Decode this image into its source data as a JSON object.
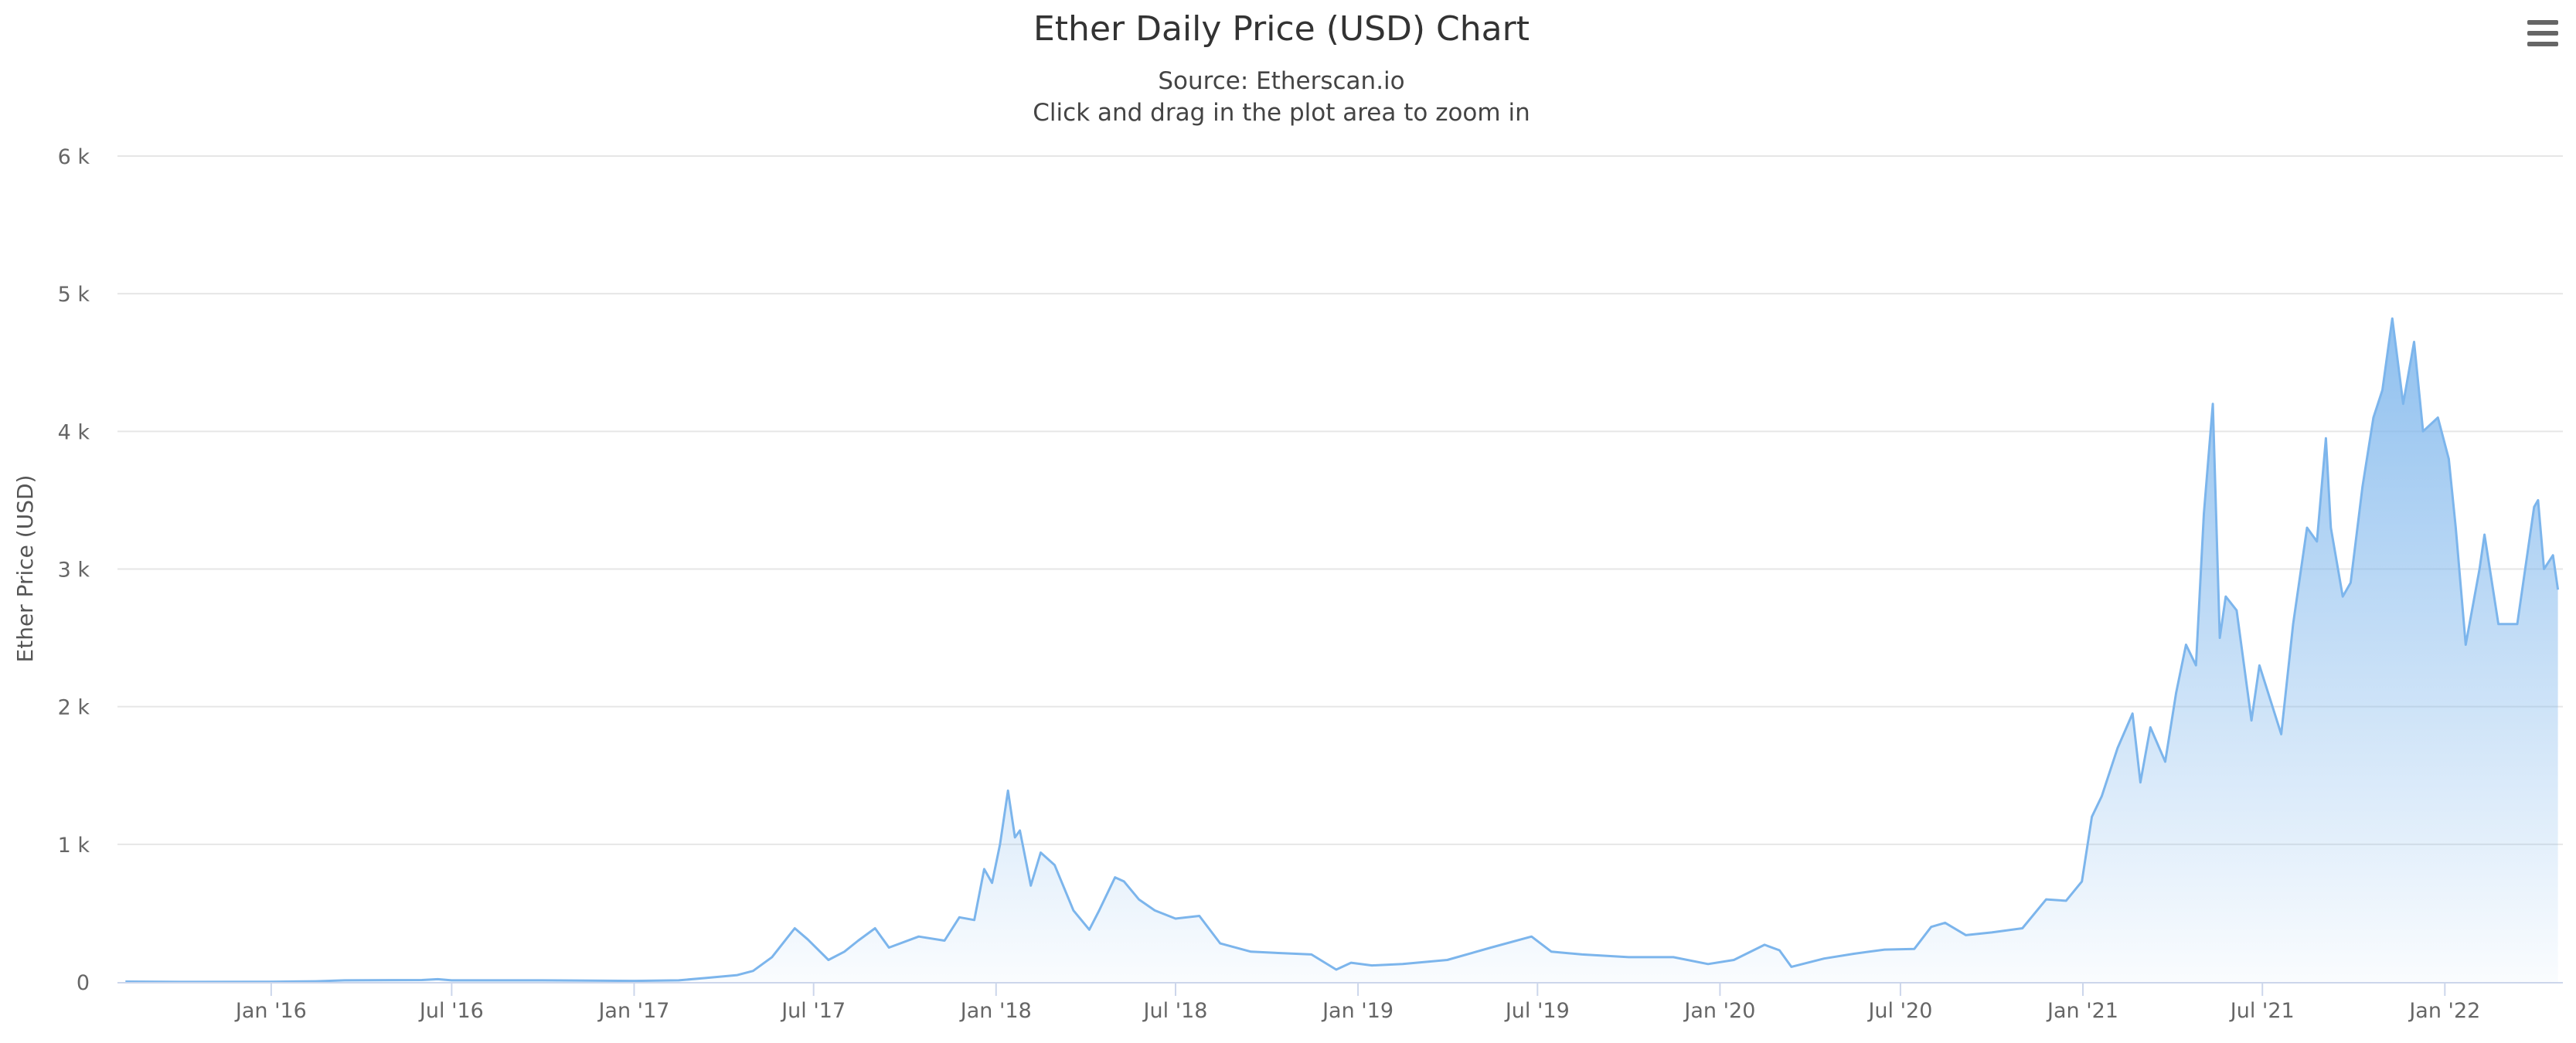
{
  "chart": {
    "title": "Ether Daily Price (USD) Chart",
    "subtitle_source": "Source: Etherscan.io",
    "subtitle_hint": "Click and drag in the plot area to zoom in",
    "menu_icon": "hamburger-menu-icon"
  },
  "chart_data": {
    "type": "area",
    "title": "Ether Daily Price (USD) Chart",
    "subtitle": "Source: Etherscan.io / Click and drag in the plot area to zoom in",
    "xlabel": "",
    "ylabel": "Ether Price (USD)",
    "ylim": [
      0,
      6000
    ],
    "xlim": [
      "2015-07-30",
      "2022-04-30"
    ],
    "yticks": [
      0,
      1000,
      2000,
      3000,
      4000,
      5000,
      6000
    ],
    "ytick_labels": [
      "0",
      "1 k",
      "2 k",
      "3 k",
      "4 k",
      "5 k",
      "6 k"
    ],
    "xticks": [
      {
        "date": "2016-01-01",
        "label": "Jan '16"
      },
      {
        "date": "2016-07-01",
        "label": "Jul '16"
      },
      {
        "date": "2017-01-01",
        "label": "Jan '17"
      },
      {
        "date": "2017-07-01",
        "label": "Jul '17"
      },
      {
        "date": "2018-01-01",
        "label": "Jan '18"
      },
      {
        "date": "2018-07-01",
        "label": "Jul '18"
      },
      {
        "date": "2019-01-01",
        "label": "Jan '19"
      },
      {
        "date": "2019-07-01",
        "label": "Jul '19"
      },
      {
        "date": "2020-01-01",
        "label": "Jan '20"
      },
      {
        "date": "2020-07-01",
        "label": "Jul '20"
      },
      {
        "date": "2021-01-01",
        "label": "Jan '21"
      },
      {
        "date": "2021-07-01",
        "label": "Jul '21"
      },
      {
        "date": "2022-01-01",
        "label": "Jan '22"
      }
    ],
    "grid": true,
    "legend": "none",
    "series_color": "#7cb5ec",
    "series": [
      {
        "name": "",
        "points": [
          [
            "2015-08-07",
            3
          ],
          [
            "2015-10-01",
            0.7
          ],
          [
            "2016-01-01",
            1
          ],
          [
            "2016-02-15",
            5
          ],
          [
            "2016-03-15",
            12
          ],
          [
            "2016-06-01",
            14
          ],
          [
            "2016-06-17",
            20
          ],
          [
            "2016-07-01",
            12
          ],
          [
            "2016-10-01",
            12
          ],
          [
            "2017-01-01",
            8
          ],
          [
            "2017-02-15",
            12
          ],
          [
            "2017-03-15",
            30
          ],
          [
            "2017-04-15",
            50
          ],
          [
            "2017-05-01",
            80
          ],
          [
            "2017-05-20",
            180
          ],
          [
            "2017-06-12",
            390
          ],
          [
            "2017-06-25",
            310
          ],
          [
            "2017-07-16",
            160
          ],
          [
            "2017-08-01",
            220
          ],
          [
            "2017-08-15",
            300
          ],
          [
            "2017-09-01",
            390
          ],
          [
            "2017-09-15",
            250
          ],
          [
            "2017-10-15",
            330
          ],
          [
            "2017-11-10",
            300
          ],
          [
            "2017-11-25",
            470
          ],
          [
            "2017-12-10",
            450
          ],
          [
            "2017-12-20",
            820
          ],
          [
            "2017-12-28",
            720
          ],
          [
            "2018-01-05",
            1000
          ],
          [
            "2018-01-13",
            1390
          ],
          [
            "2018-01-20",
            1050
          ],
          [
            "2018-01-25",
            1100
          ],
          [
            "2018-02-05",
            700
          ],
          [
            "2018-02-15",
            940
          ],
          [
            "2018-03-01",
            850
          ],
          [
            "2018-03-20",
            520
          ],
          [
            "2018-04-05",
            380
          ],
          [
            "2018-04-15",
            520
          ],
          [
            "2018-05-01",
            760
          ],
          [
            "2018-05-10",
            730
          ],
          [
            "2018-05-25",
            600
          ],
          [
            "2018-06-10",
            520
          ],
          [
            "2018-07-01",
            460
          ],
          [
            "2018-07-25",
            480
          ],
          [
            "2018-08-15",
            280
          ],
          [
            "2018-09-15",
            220
          ],
          [
            "2018-10-15",
            210
          ],
          [
            "2018-11-15",
            200
          ],
          [
            "2018-12-10",
            90
          ],
          [
            "2018-12-25",
            140
          ],
          [
            "2019-01-15",
            120
          ],
          [
            "2019-02-15",
            130
          ],
          [
            "2019-04-01",
            160
          ],
          [
            "2019-05-15",
            250
          ],
          [
            "2019-06-25",
            330
          ],
          [
            "2019-07-15",
            220
          ],
          [
            "2019-08-15",
            200
          ],
          [
            "2019-10-01",
            180
          ],
          [
            "2019-11-15",
            180
          ],
          [
            "2019-12-20",
            130
          ],
          [
            "2020-01-15",
            160
          ],
          [
            "2020-02-15",
            270
          ],
          [
            "2020-03-01",
            230
          ],
          [
            "2020-03-13",
            110
          ],
          [
            "2020-04-15",
            170
          ],
          [
            "2020-05-15",
            205
          ],
          [
            "2020-06-15",
            235
          ],
          [
            "2020-07-15",
            240
          ],
          [
            "2020-08-01",
            400
          ],
          [
            "2020-08-15",
            430
          ],
          [
            "2020-09-05",
            340
          ],
          [
            "2020-10-01",
            360
          ],
          [
            "2020-11-01",
            390
          ],
          [
            "2020-11-25",
            600
          ],
          [
            "2020-12-15",
            590
          ],
          [
            "2020-12-31",
            730
          ],
          [
            "2021-01-10",
            1200
          ],
          [
            "2021-01-20",
            1350
          ],
          [
            "2021-02-05",
            1700
          ],
          [
            "2021-02-20",
            1950
          ],
          [
            "2021-02-28",
            1450
          ],
          [
            "2021-03-10",
            1850
          ],
          [
            "2021-03-25",
            1600
          ],
          [
            "2021-04-05",
            2100
          ],
          [
            "2021-04-15",
            2450
          ],
          [
            "2021-04-25",
            2300
          ],
          [
            "2021-05-03",
            3400
          ],
          [
            "2021-05-12",
            4200
          ],
          [
            "2021-05-19",
            2500
          ],
          [
            "2021-05-25",
            2800
          ],
          [
            "2021-06-05",
            2700
          ],
          [
            "2021-06-20",
            1900
          ],
          [
            "2021-06-28",
            2300
          ],
          [
            "2021-07-20",
            1800
          ],
          [
            "2021-08-01",
            2600
          ],
          [
            "2021-08-15",
            3300
          ],
          [
            "2021-08-25",
            3200
          ],
          [
            "2021-09-03",
            3950
          ],
          [
            "2021-09-08",
            3300
          ],
          [
            "2021-09-20",
            2800
          ],
          [
            "2021-09-28",
            2900
          ],
          [
            "2021-10-10",
            3600
          ],
          [
            "2021-10-21",
            4100
          ],
          [
            "2021-10-30",
            4300
          ],
          [
            "2021-11-09",
            4820
          ],
          [
            "2021-11-20",
            4200
          ],
          [
            "2021-12-01",
            4650
          ],
          [
            "2021-12-10",
            4000
          ],
          [
            "2021-12-25",
            4100
          ],
          [
            "2022-01-05",
            3800
          ],
          [
            "2022-01-12",
            3300
          ],
          [
            "2022-01-22",
            2450
          ],
          [
            "2022-02-05",
            3000
          ],
          [
            "2022-02-10",
            3250
          ],
          [
            "2022-02-24",
            2600
          ],
          [
            "2022-03-15",
            2600
          ],
          [
            "2022-04-01",
            3450
          ],
          [
            "2022-04-05",
            3500
          ],
          [
            "2022-04-11",
            3000
          ],
          [
            "2022-04-20",
            3100
          ],
          [
            "2022-04-25",
            2850
          ]
        ]
      }
    ]
  }
}
